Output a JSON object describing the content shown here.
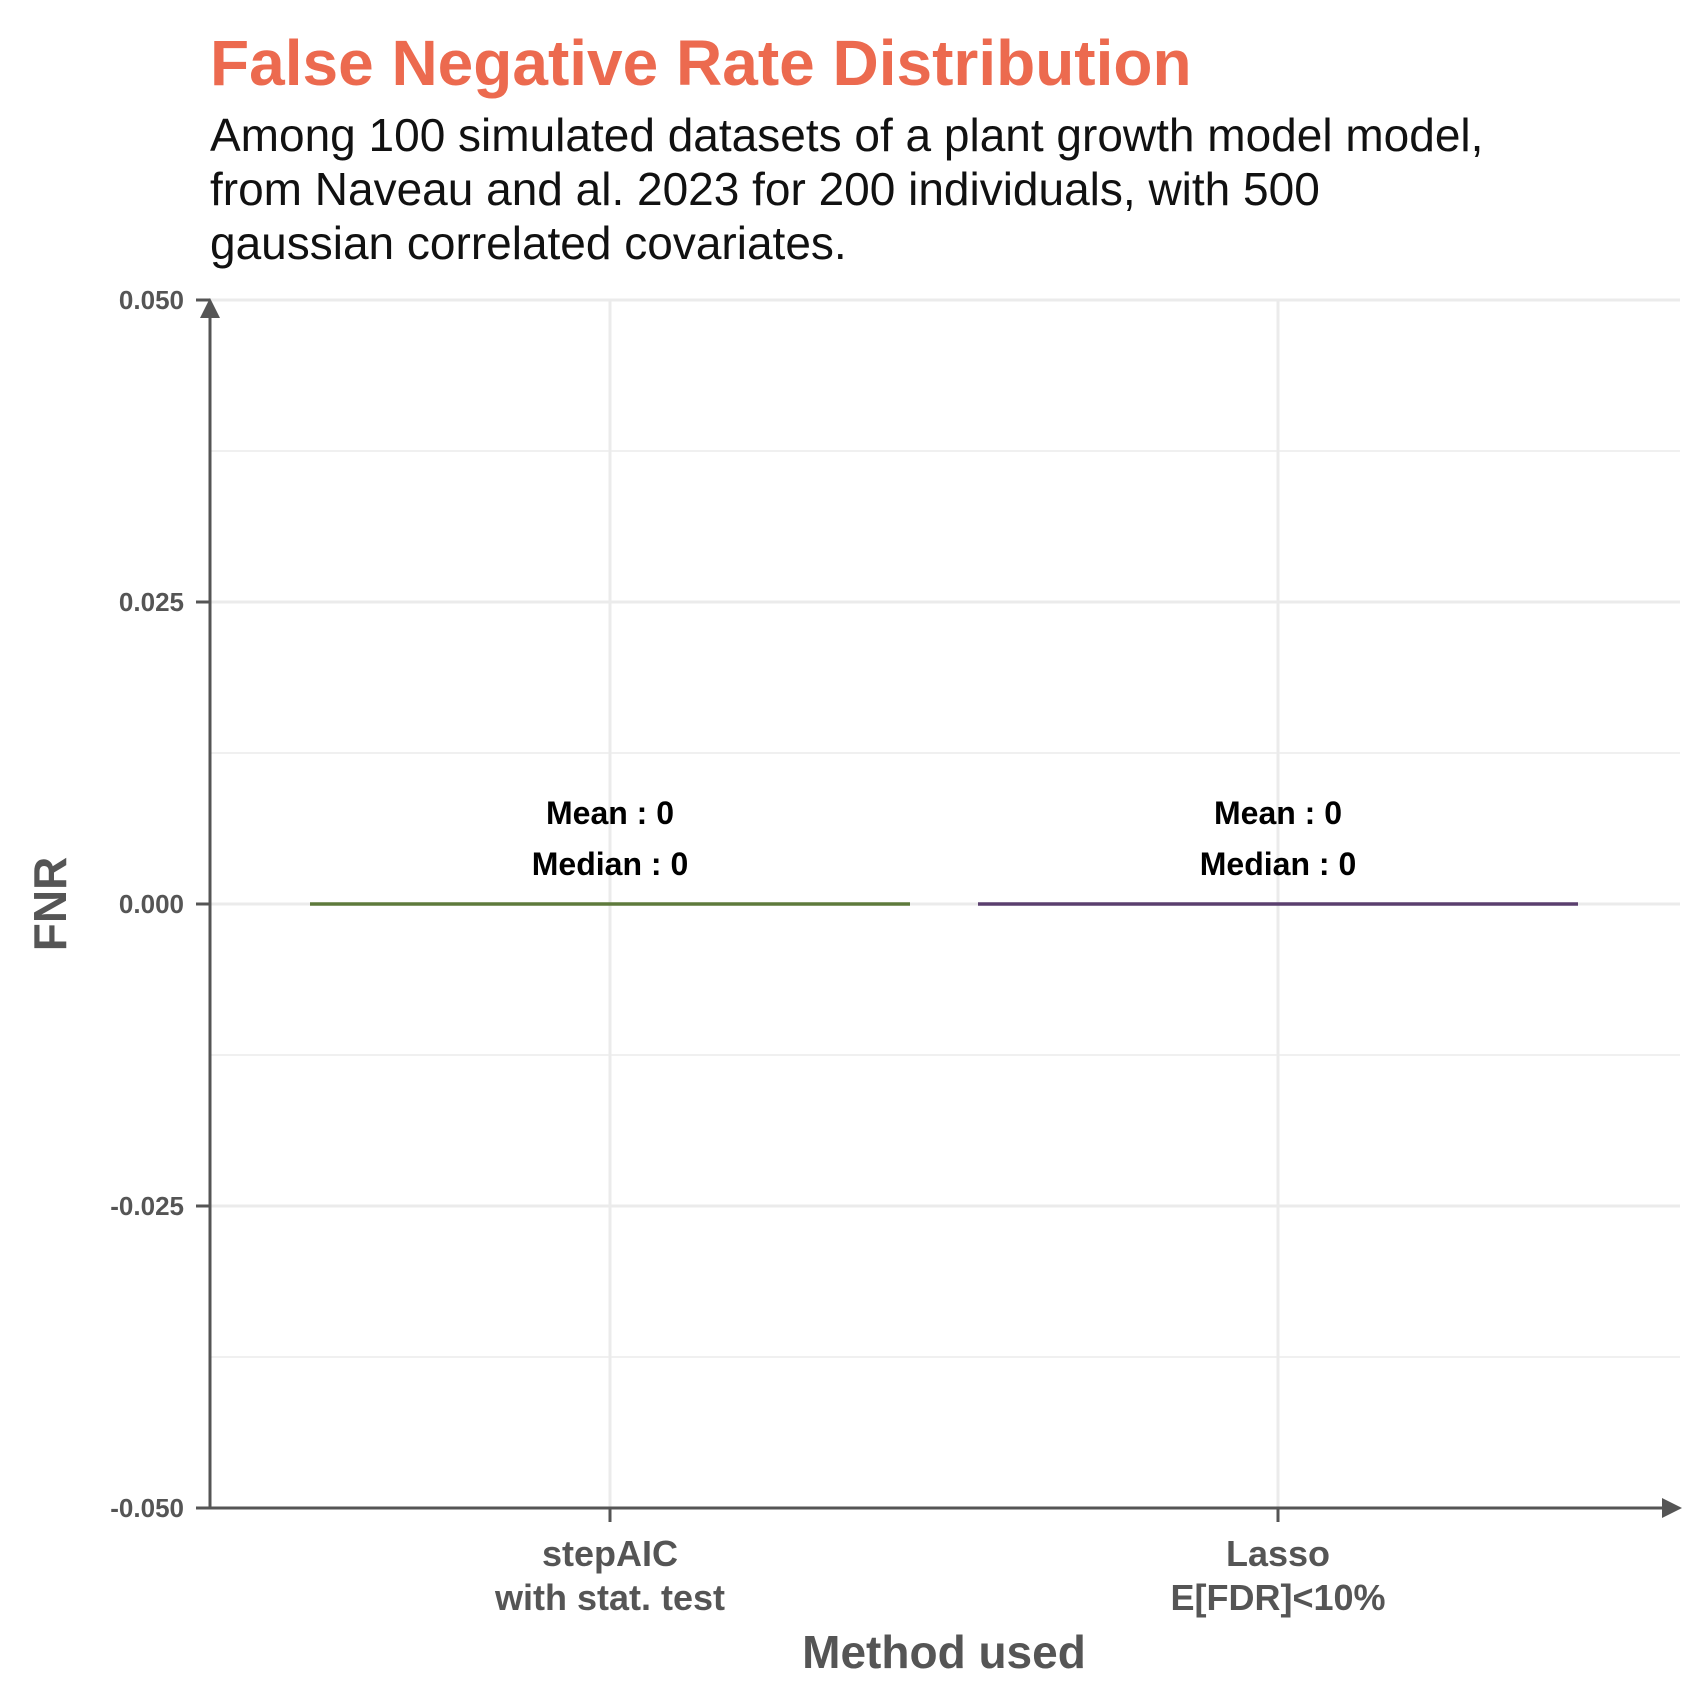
{
  "chart_data": {
    "type": "box",
    "title": "False Negative Rate Distribution",
    "subtitle_lines": [
      "Among 100 simulated datasets of a plant growth model model,",
      "from Naveau and al. 2023 for 200 individuals, with 500",
      "gaussian correlated covariates."
    ],
    "xlabel": "Method used",
    "ylabel": "FNR",
    "ylim": [
      -0.05,
      0.05
    ],
    "y_ticks": [
      "-0.050",
      "-0.025",
      "0.000",
      "0.025",
      "0.050"
    ],
    "grid": true,
    "categories": [
      {
        "label_lines": [
          "stepAIC",
          "with stat. test"
        ],
        "median": 0,
        "color": "#5E7A3C",
        "annotation": [
          "Mean : 0",
          "Median : 0"
        ]
      },
      {
        "label_lines": [
          "Lasso",
          "E[FDR]<10%"
        ],
        "median": 0,
        "color": "#5A3F6E",
        "annotation": [
          "Mean : 0",
          "Median : 0"
        ]
      }
    ]
  }
}
